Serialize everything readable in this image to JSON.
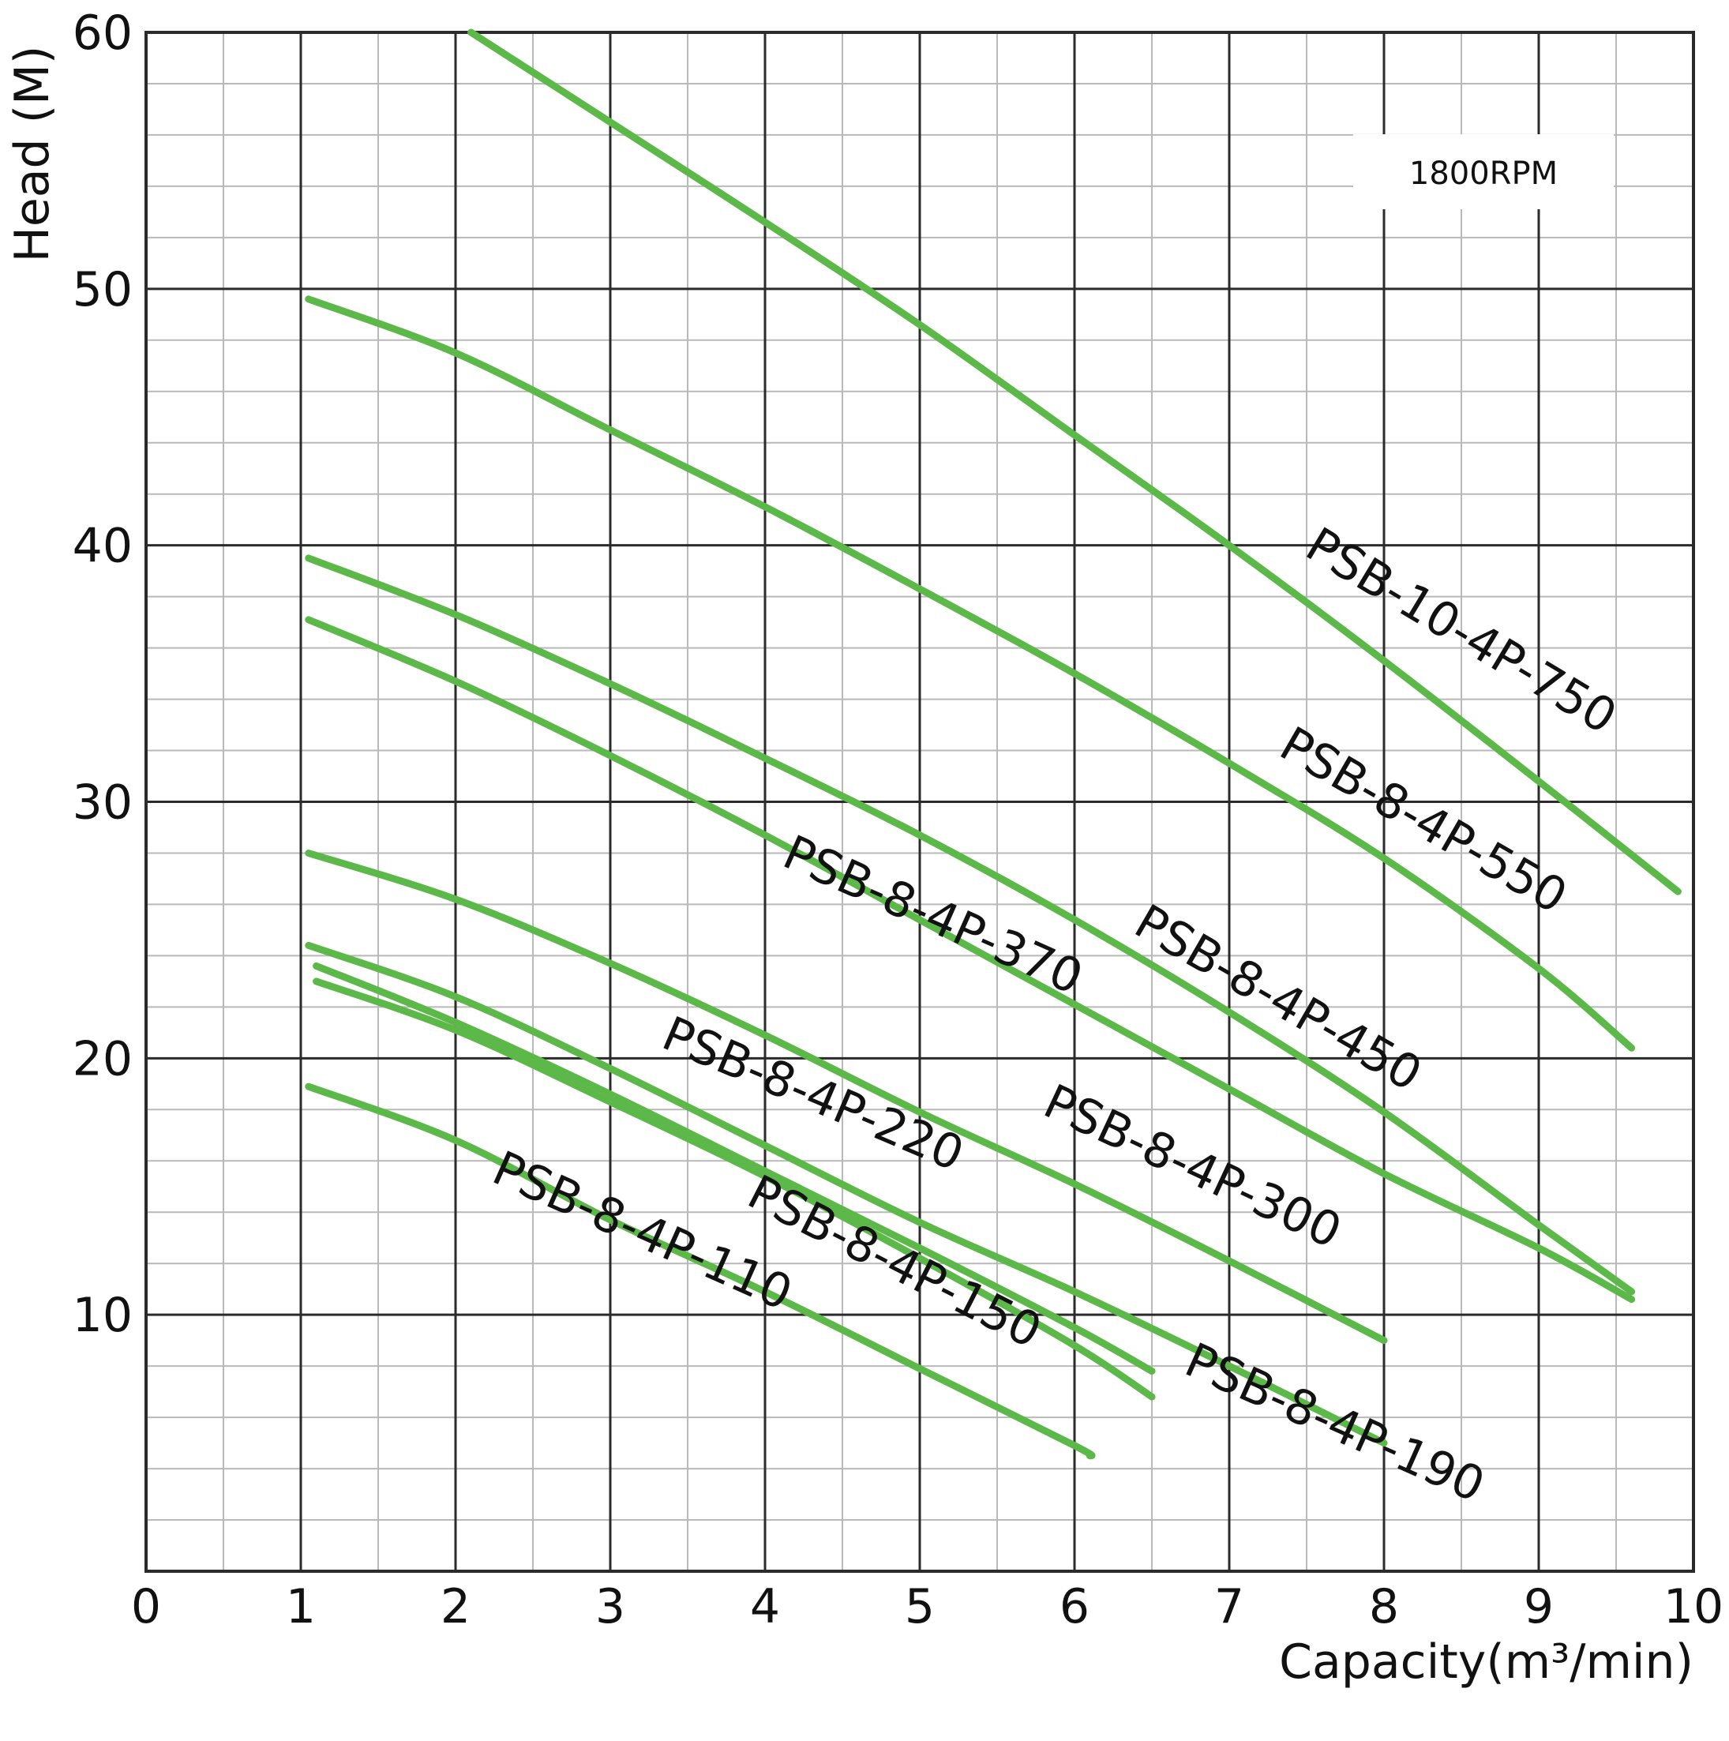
{
  "chart_data": {
    "type": "line",
    "xlabel": "Capacity(m³/min)",
    "ylabel": "Head (M)",
    "xlim": [
      0,
      10
    ],
    "ylim": [
      0,
      60
    ],
    "x_ticks": [
      "0",
      "1",
      "2",
      "3",
      "4",
      "5",
      "6",
      "7",
      "8",
      "9",
      "10"
    ],
    "y_ticks": [
      "10",
      "20",
      "30",
      "40",
      "50",
      "60"
    ],
    "grid": true,
    "annotation": "1800RPM",
    "line_color": "#5cb848",
    "series": [
      {
        "name": "PSB-10-4P-750",
        "x": [
          2.1,
          3,
          4,
          5,
          6,
          7,
          8,
          9,
          9.9
        ],
        "y": [
          60,
          56.5,
          52.6,
          48.6,
          44.3,
          40,
          35.5,
          30.8,
          26.5
        ]
      },
      {
        "name": "PSB-8-4P-550",
        "x": [
          1.05,
          2,
          3,
          4,
          5,
          6,
          7,
          8,
          9,
          9.6
        ],
        "y": [
          49.6,
          47.5,
          44.5,
          41.5,
          38.3,
          35,
          31.5,
          27.8,
          23.5,
          20.4
        ]
      },
      {
        "name": "PSB-8-4P-450",
        "x": [
          1.05,
          2,
          3,
          4,
          5,
          6,
          7,
          8,
          9,
          9.6
        ],
        "y": [
          39.5,
          37.3,
          34.6,
          31.7,
          28.7,
          25.4,
          21.8,
          17.9,
          13.5,
          10.9
        ]
      },
      {
        "name": "PSB-8-4P-370",
        "x": [
          1.05,
          2,
          3,
          4,
          5,
          6,
          7,
          8,
          9,
          9.6
        ],
        "y": [
          37.1,
          34.7,
          31.8,
          28.7,
          25.4,
          22.1,
          18.8,
          15.5,
          12.6,
          10.6
        ]
      },
      {
        "name": "PSB-8-4P-300",
        "x": [
          1.05,
          2,
          3,
          4,
          5,
          6,
          7,
          8
        ],
        "y": [
          28,
          26.2,
          23.7,
          20.9,
          17.9,
          15.1,
          12.1,
          9
        ]
      },
      {
        "name": "PSB-8-4P-220",
        "x": [
          1.05,
          2,
          3,
          4,
          5,
          6,
          7,
          8
        ],
        "y": [
          24.4,
          22.4,
          19.6,
          16.6,
          13.6,
          10.9,
          8,
          5
        ]
      },
      {
        "name": "PSB-8-4P-190",
        "x": [
          1.1,
          2,
          3,
          4,
          5,
          6,
          6.5
        ],
        "y": [
          23.6,
          21.4,
          18.6,
          15.6,
          12.6,
          9.5,
          7.8
        ]
      },
      {
        "name": "PSB-8-4P-150",
        "x": [
          1.1,
          2,
          3,
          4,
          5,
          6,
          6.5
        ],
        "y": [
          23,
          21.1,
          18.3,
          15.4,
          12.2,
          8.8,
          6.8
        ]
      },
      {
        "name": "PSB-8-4P-110",
        "x": [
          1.05,
          2,
          3,
          4,
          5,
          6,
          6.1
        ],
        "y": [
          18.9,
          16.8,
          13.7,
          10.9,
          7.9,
          4.9,
          4.5
        ]
      }
    ]
  }
}
